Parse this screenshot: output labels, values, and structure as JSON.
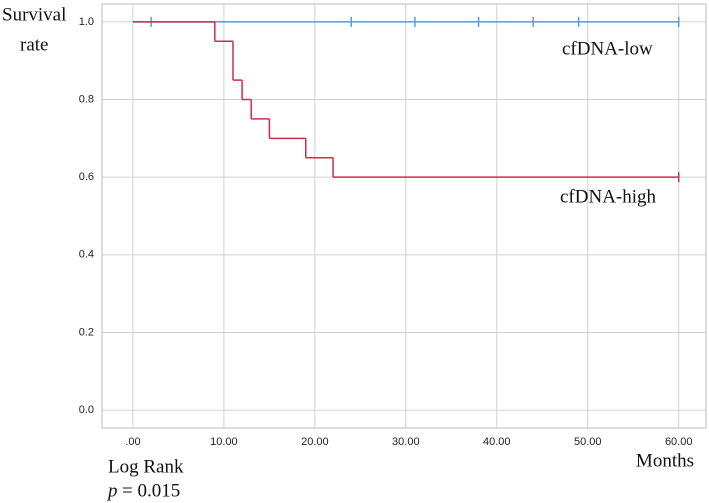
{
  "chart_data": {
    "type": "km",
    "y_label_lines": [
      "Survival",
      "rate"
    ],
    "x_label": "Months",
    "test_name": "Log Rank",
    "p_symbol": "p",
    "p_text": "= 0.015",
    "xlim": [
      -3.4,
      63
    ],
    "ylim": [
      -0.046,
      1.046
    ],
    "xticks": [
      {
        "value": 0,
        "label": ".00"
      },
      {
        "value": 10,
        "label": "10.00"
      },
      {
        "value": 20,
        "label": "20.00"
      },
      {
        "value": 30,
        "label": "30.00"
      },
      {
        "value": 40,
        "label": "40.00"
      },
      {
        "value": 50,
        "label": "50.00"
      },
      {
        "value": 60,
        "label": "60.00"
      }
    ],
    "yticks": [
      {
        "value": 0,
        "label": "0.0"
      },
      0.2,
      0.4,
      0.6,
      0.8,
      {
        "value": 1,
        "label": "1.0"
      }
    ],
    "grid": true,
    "series": [
      {
        "name": "cfDNA-low",
        "color": "#5b9bd5",
        "x": [
          0,
          60
        ],
        "values": [
          1,
          1
        ],
        "censor_x": [
          2,
          24,
          31,
          38,
          44,
          49,
          60
        ],
        "censor_values": [
          1,
          1,
          1,
          1,
          1,
          1,
          1
        ]
      },
      {
        "name": "cfDNA-high",
        "color": "#d42a4c",
        "x": [
          0,
          9,
          11,
          12,
          13,
          15,
          19,
          22,
          60
        ],
        "values": [
          1,
          0.95,
          0.85,
          0.8,
          0.75,
          0.7,
          0.65,
          0.6,
          0.6
        ],
        "censor_x": [
          60
        ],
        "censor_values": [
          0.6
        ]
      }
    ]
  }
}
